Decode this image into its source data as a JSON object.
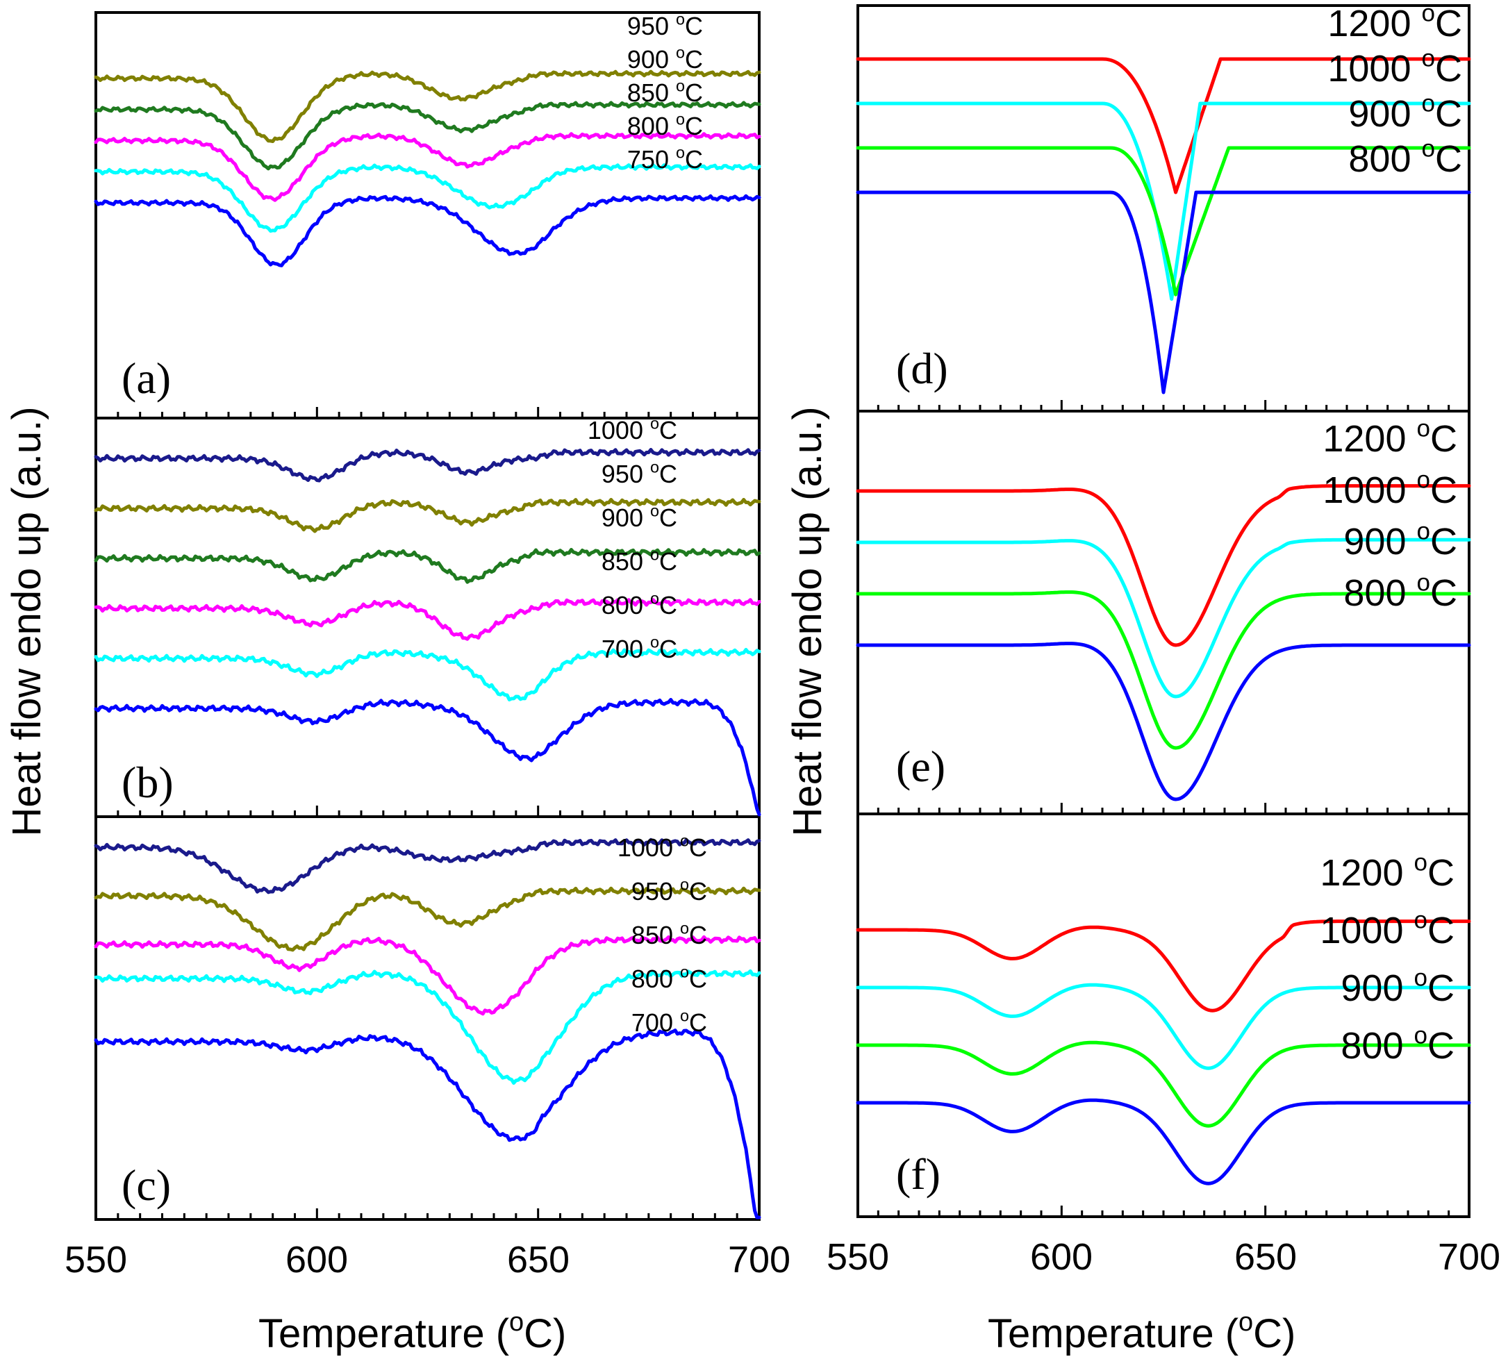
{
  "figure": {
    "left_xlabel": "Temperature (",
    "right_xlabel": "Temperature (",
    "deg_symbol": "o",
    "xlabel_unit": "C)",
    "left_ylabel": "Heat flow endo up (a.u.)",
    "right_ylabel": "Heat flow endo up (a.u.)",
    "left_xticks": [
      "550",
      "600",
      "650",
      "700"
    ],
    "right_xticks": [
      "550",
      "600",
      "650",
      "700"
    ]
  },
  "chart_data": [
    {
      "type": "line",
      "panel": "(a)",
      "xlim": [
        550,
        700
      ],
      "xlabel": "Temperature (oC)",
      "ylabel": "Heat flow endo up (a.u.)",
      "series": [
        {
          "name": "950 oC",
          "color": "#808000",
          "offset": 3.2,
          "dips": [
            [
              590,
              1.6,
              6.5
            ],
            [
              632,
              0.55,
              6.5
            ]
          ],
          "step": [
            645,
            651,
            0.12
          ],
          "wobble": 1
        },
        {
          "name": "900 oC",
          "color": "#1f7a1f",
          "offset": 2.4,
          "dips": [
            [
              590,
              1.5,
              6.5
            ],
            [
              633,
              0.55,
              6.5
            ]
          ],
          "step": [
            645,
            652,
            0.12
          ],
          "wobble": 1
        },
        {
          "name": "850 oC",
          "color": "#ff00ff",
          "offset": 1.6,
          "dips": [
            [
              590,
              1.5,
              6.5
            ],
            [
              634,
              0.65,
              6.5
            ]
          ],
          "step": [
            645,
            654,
            0.12
          ],
          "wobble": 1
        },
        {
          "name": "800 oC",
          "color": "#00ffff",
          "offset": 0.8,
          "dips": [
            [
              590,
              1.5,
              6.5
            ],
            [
              640,
              0.9,
              8.0
            ]
          ],
          "step": [
            647,
            655,
            0.12
          ],
          "wobble": 1
        },
        {
          "name": "750 oC",
          "color": "#0000ff",
          "offset": 0.0,
          "dips": [
            [
              591,
              1.6,
              6.0
            ],
            [
              645,
              1.3,
              8.5
            ]
          ],
          "step": [
            648,
            655,
            0.12
          ],
          "wobble": 1
        }
      ],
      "labels": [
        "950 oC",
        "900 oC",
        "850 oC",
        "800 oC",
        "750 oC"
      ]
    },
    {
      "type": "line",
      "panel": "(b)",
      "xlim": [
        550,
        700
      ],
      "xlabel": "Temperature (oC)",
      "ylabel": "Heat flow endo up (a.u.)",
      "series": [
        {
          "name": "1000 oC",
          "color": "#1a1a8c",
          "offset": 4.0,
          "dips": [
            [
              600,
              0.45,
              6
            ],
            [
              634,
              0.3,
              5
            ]
          ],
          "step": [
            648,
            655,
            0.12
          ],
          "wobble": 1
        },
        {
          "name": "950 oC",
          "color": "#808000",
          "offset": 3.0,
          "dips": [
            [
              600,
              0.45,
              6
            ],
            [
              634,
              0.3,
              5
            ]
          ],
          "step": [
            645,
            650,
            0.12
          ],
          "wobble": 1
        },
        {
          "name": "900 oC",
          "color": "#1f7a1f",
          "offset": 2.0,
          "dips": [
            [
              600,
              0.45,
              6
            ],
            [
              634,
              0.45,
              5
            ]
          ],
          "step": [
            645,
            650,
            0.12
          ],
          "wobble": 1
        },
        {
          "name": "850 oC",
          "color": "#ff00ff",
          "offset": 1.0,
          "dips": [
            [
              600,
              0.35,
              6
            ],
            [
              634,
              0.6,
              6
            ]
          ],
          "step": [
            647,
            655,
            0.12
          ],
          "wobble": 1
        },
        {
          "name": "800 oC",
          "color": "#00ffff",
          "offset": 0.0,
          "dips": [
            [
              600,
              0.35,
              6
            ],
            [
              645,
              0.8,
              7
            ]
          ],
          "step": [
            647,
            654,
            0.12
          ],
          "wobble": 1
        },
        {
          "name": "700 oC",
          "color": "#0000ff",
          "offset": -1.0,
          "dips": [
            [
              600,
              0.3,
              6
            ],
            [
              648,
              1.0,
              8
            ]
          ],
          "step": [
            648,
            655,
            0.12
          ],
          "wobble": 1,
          "fall": [
            685,
            2.4
          ]
        }
      ],
      "labels": [
        "1000 oC",
        "950 oC",
        "900 oC",
        "850 oC",
        "800 oC",
        "700 oC"
      ]
    },
    {
      "type": "line",
      "panel": "(c)",
      "xlim": [
        550,
        700
      ],
      "xlabel": "Temperature (oC)",
      "ylabel": "Heat flow endo up (a.u.)",
      "series": [
        {
          "name": "1000 oC",
          "color": "#1a1a8c",
          "offset": 4.0,
          "dips": [
            [
              589,
              0.9,
              9
            ],
            [
              628,
              0.3,
              10
            ]
          ],
          "step": [
            648,
            652,
            0.1
          ],
          "wobble": 1
        },
        {
          "name": "950 oC",
          "color": "#808000",
          "offset": 3.0,
          "dips": [
            [
              595,
              1.1,
              9
            ],
            [
              632,
              0.6,
              7
            ]
          ],
          "step": [
            645,
            650,
            0.1
          ],
          "wobble": 1
        },
        {
          "name": "850 oC",
          "color": "#ff00ff",
          "offset": 2.0,
          "dips": [
            [
              596,
              0.5,
              6
            ],
            [
              638,
              1.4,
              9
            ]
          ],
          "step": [
            645,
            652,
            0.1
          ],
          "wobble": 1
        },
        {
          "name": "800 oC",
          "color": "#00ffff",
          "offset": 1.3,
          "dips": [
            [
              598,
              0.3,
              6
            ],
            [
              645,
              2.1,
              10
            ]
          ],
          "step": [
            647,
            652,
            0.1
          ],
          "wobble": 1
        },
        {
          "name": "700 oC",
          "color": "#0000ff",
          "offset": 0.0,
          "dips": [
            [
              598,
              0.2,
              6
            ],
            [
              645,
              2.0,
              11
            ]
          ],
          "step": [
            648,
            652,
            0.2
          ],
          "wobble": 1,
          "fall": [
            683,
            4.4
          ]
        }
      ],
      "labels": [
        "1000 oC",
        "950 oC",
        "850 oC",
        "800 oC",
        "700 oC"
      ]
    },
    {
      "type": "line",
      "panel": "(d)",
      "xlim": [
        550,
        700
      ],
      "xlabel": "Temperature (oC)",
      "ylabel": "Heat flow endo up (a.u.)",
      "series": [
        {
          "name": "1200 oC",
          "color": "#ff0000",
          "offset": 3.0,
          "vshape": [
            610,
            628,
            639,
            3.0
          ]
        },
        {
          "name": "1000 oC",
          "color": "#00ffff",
          "offset": 2.0,
          "vshape": [
            610,
            627,
            634,
            4.4
          ]
        },
        {
          "name": "900 oC",
          "color": "#00ff00",
          "offset": 1.0,
          "vshape": [
            612,
            628,
            641,
            3.3
          ]
        },
        {
          "name": "800 oC",
          "color": "#0000ff",
          "offset": 0.0,
          "vshape": [
            612,
            625,
            633,
            4.5
          ]
        }
      ],
      "labels": [
        "1200 oC",
        "1000 oC",
        "900 oC",
        "800 oC"
      ]
    },
    {
      "type": "line",
      "panel": "(e)",
      "xlim": [
        550,
        700
      ],
      "xlabel": "Temperature (oC)",
      "ylabel": "Heat flow endo up (a.u.)",
      "series": [
        {
          "name": "1200 oC",
          "color": "#ff0000",
          "offset": 3.0,
          "smooth": [
            [
              628,
              3.0,
              8,
              10
            ]
          ],
          "endstep": [
            656,
            0.1
          ]
        },
        {
          "name": "1000 oC",
          "color": "#00ffff",
          "offset": 2.0,
          "smooth": [
            [
              628,
              3.0,
              8,
              10
            ]
          ],
          "endstep": [
            656,
            0.05
          ]
        },
        {
          "name": "900 oC",
          "color": "#00ff00",
          "offset": 1.0,
          "smooth": [
            [
              628,
              3.0,
              8,
              10
            ]
          ],
          "endstep": [
            656,
            0.0
          ]
        },
        {
          "name": "800 oC",
          "color": "#0000ff",
          "offset": 0.0,
          "smooth": [
            [
              628,
              3.0,
              8,
              10
            ]
          ],
          "endstep": [
            656,
            0.0
          ]
        }
      ],
      "labels": [
        "1200 oC",
        "1000 oC",
        "900 oC",
        "800 oC"
      ]
    },
    {
      "type": "line",
      "panel": "(f)",
      "xlim": [
        550,
        700
      ],
      "xlabel": "Temperature (oC)",
      "ylabel": "Heat flow endo up (a.u.)",
      "series": [
        {
          "name": "1200 oC",
          "color": "#ff0000",
          "offset": 3.0,
          "smooth": [
            [
              588,
              0.5,
              7,
              7
            ],
            [
              637,
              1.4,
              8,
              8
            ]
          ],
          "endstep": [
            657,
            0.15
          ]
        },
        {
          "name": "1000 oC",
          "color": "#00ffff",
          "offset": 2.0,
          "smooth": [
            [
              588,
              0.5,
              7,
              7
            ],
            [
              636,
              1.4,
              8,
              8
            ]
          ],
          "endstep": [
            657,
            0.0
          ]
        },
        {
          "name": "900 oC",
          "color": "#00ff00",
          "offset": 1.0,
          "smooth": [
            [
              588,
              0.5,
              7,
              7
            ],
            [
              636,
              1.4,
              8,
              8
            ]
          ],
          "endstep": [
            657,
            0.0
          ]
        },
        {
          "name": "800 oC",
          "color": "#0000ff",
          "offset": 0.0,
          "smooth": [
            [
              588,
              0.5,
              7,
              7
            ],
            [
              636,
              1.4,
              8,
              8
            ]
          ],
          "endstep": [
            657,
            0.0
          ]
        }
      ],
      "labels": [
        "1200 oC",
        "1000 oC",
        "900 oC",
        "800 oC"
      ]
    }
  ]
}
